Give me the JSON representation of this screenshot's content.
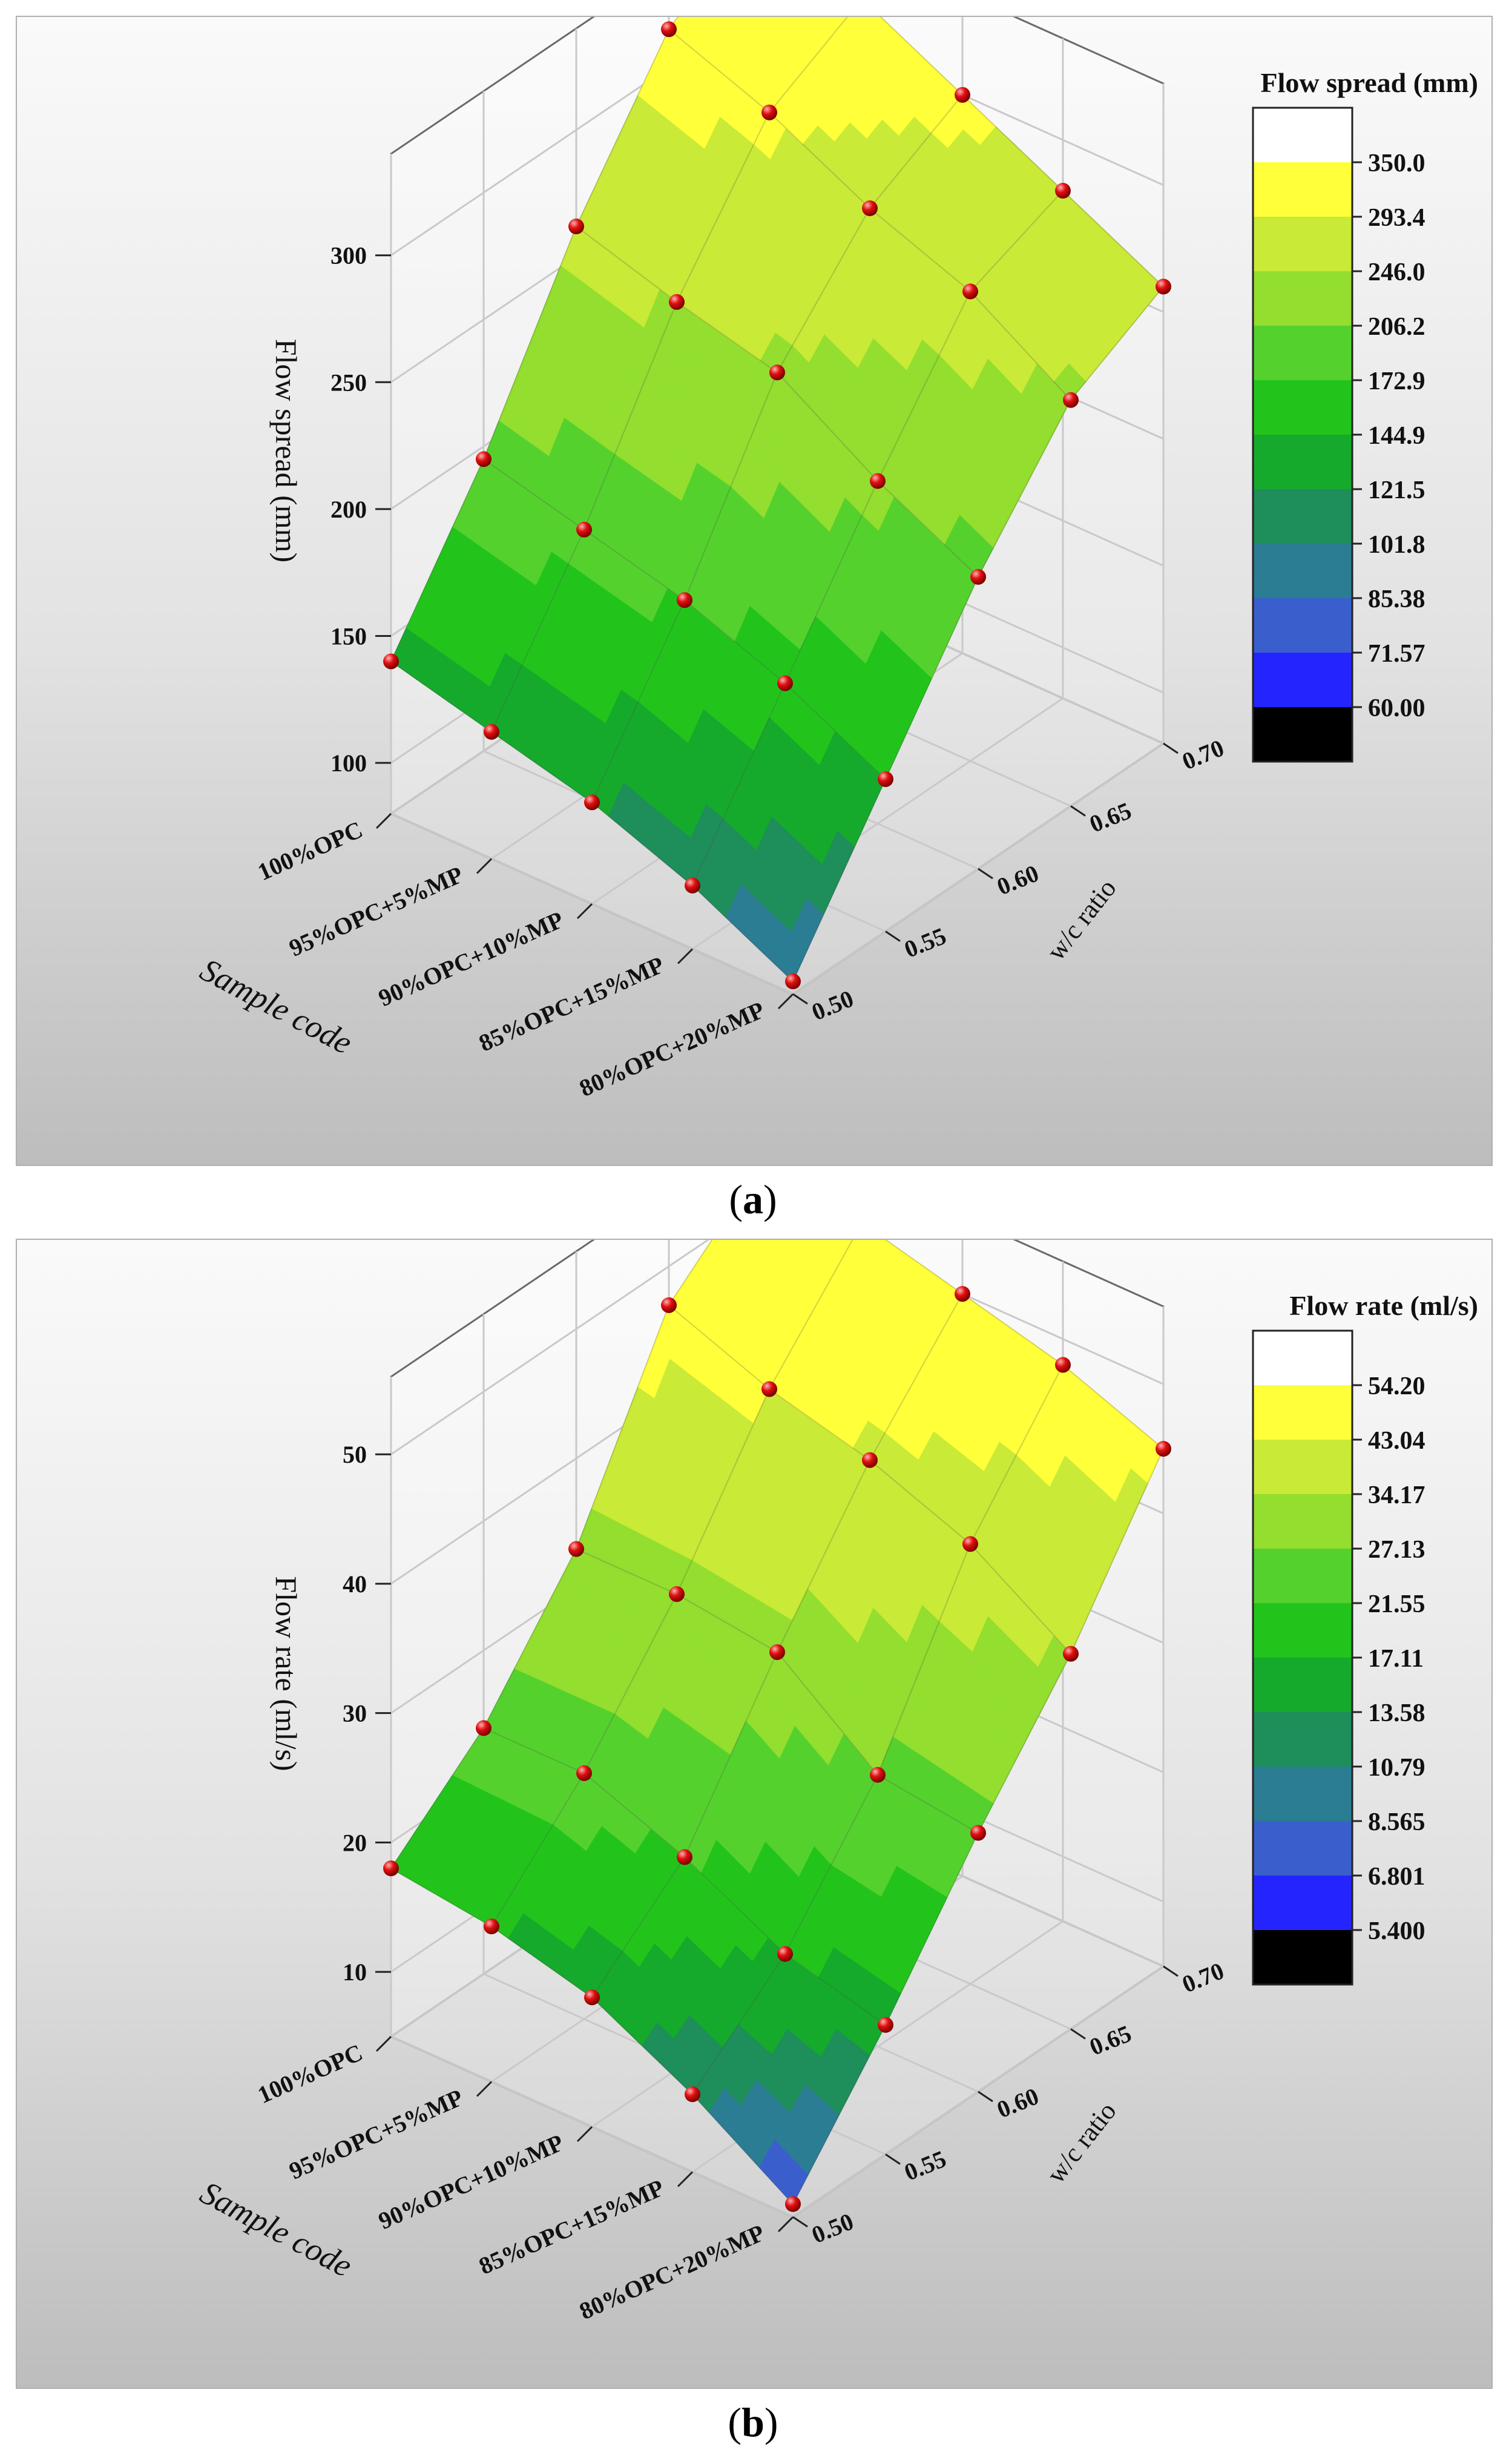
{
  "chart_data": [
    {
      "type": "surface",
      "panel_label": "a",
      "zlabel": "Flow spread (mm)",
      "xlabel": "Sample code",
      "ylabel": "w/c ratio",
      "legend_title": "Flow spread (mm)",
      "categories": [
        "100%OPC",
        "95%OPC+5%MP",
        "90%OPC+10%MP",
        "85%OPC+15%MP",
        "80%OPC+20%MP"
      ],
      "y": [
        0.5,
        0.55,
        0.6,
        0.65,
        0.7
      ],
      "y_ticks": [
        "0.50",
        "0.55",
        "0.60",
        "0.65",
        "0.70"
      ],
      "zlim": [
        80,
        340
      ],
      "z_ticks": [
        100,
        150,
        200,
        250,
        300
      ],
      "legend_position": "right",
      "values": [
        [
          140,
          195,
          262,
          315,
          340
        ],
        [
          130,
          185,
          250,
          300,
          320
        ],
        [
          120,
          175,
          240,
          280,
          300
        ],
        [
          105,
          160,
          215,
          265,
          280
        ],
        [
          85,
          140,
          195,
          240,
          260
        ]
      ],
      "levels": [
        "60.00",
        "71.57",
        "85.38",
        "101.8",
        "121.5",
        "144.9",
        "172.9",
        "206.2",
        "246.0",
        "293.4",
        "350.0"
      ],
      "level_values": [
        60,
        71.57,
        85.38,
        101.8,
        121.5,
        144.9,
        172.9,
        206.2,
        246.0,
        293.4,
        350.0
      ],
      "colors": [
        "#000000",
        "#2424ff",
        "#3a5fcd",
        "#2a7d92",
        "#1e8e5a",
        "#15aa2b",
        "#22c41c",
        "#55d12d",
        "#93de2e",
        "#c9ea36",
        "#ffff3a",
        "#ffffff"
      ]
    },
    {
      "type": "surface",
      "panel_label": "b",
      "zlabel": "Flow rate (ml/s)",
      "xlabel": "Sample code",
      "ylabel": "w/c ratio",
      "legend_title": "Flow rate (ml/s)",
      "categories": [
        "100%OPC",
        "95%OPC+5%MP",
        "90%OPC+10%MP",
        "85%OPC+15%MP",
        "80%OPC+20%MP"
      ],
      "y": [
        0.5,
        0.55,
        0.6,
        0.65,
        0.7
      ],
      "y_ticks": [
        "0.50",
        "0.55",
        "0.60",
        "0.65",
        "0.70"
      ],
      "zlim": [
        5,
        56
      ],
      "z_ticks": [
        10,
        20,
        30,
        40,
        50
      ],
      "legend_position": "right",
      "values": [
        [
          18,
          24,
          33,
          47,
          53
        ],
        [
          17,
          24,
          33,
          44,
          52
        ],
        [
          15,
          21,
          32,
          42,
          50
        ],
        [
          11,
          17,
          26,
          39,
          48
        ],
        [
          6,
          15,
          25,
          34,
          45
        ]
      ],
      "levels": [
        "5.400",
        "6.801",
        "8.565",
        "10.79",
        "13.58",
        "17.11",
        "21.55",
        "27.13",
        "34.17",
        "43.04",
        "54.20"
      ],
      "level_values": [
        5.4,
        6.801,
        8.565,
        10.79,
        13.58,
        17.11,
        21.55,
        27.13,
        34.17,
        43.04,
        54.2
      ],
      "colors": [
        "#000000",
        "#2424ff",
        "#3a5fcd",
        "#2a7d92",
        "#1e8e5a",
        "#15aa2b",
        "#22c41c",
        "#55d12d",
        "#93de2e",
        "#c9ea36",
        "#ffff3a",
        "#ffffff"
      ]
    }
  ],
  "labels": {
    "a": "a",
    "b": "b"
  }
}
